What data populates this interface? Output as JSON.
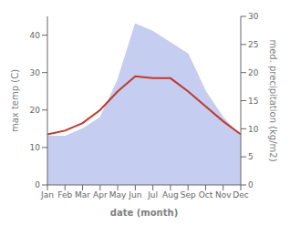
{
  "chart_data": {
    "type": "line",
    "xlabel": "date (month)",
    "ylabel": "max temp (C)",
    "y2label": "med. precipitation (kg/m2)",
    "categories": [
      "Jan",
      "Feb",
      "Mar",
      "Apr",
      "May",
      "Jun",
      "Jul",
      "Aug",
      "Sep",
      "Oct",
      "Nov",
      "Dec"
    ],
    "series": [
      {
        "type": "area",
        "color": "#c5cdf0",
        "values": [
          13.0,
          13.0,
          15.0,
          18.0,
          28.0,
          43.0,
          41.0,
          38.0,
          35.0,
          25.0,
          18.0,
          13.0
        ]
      },
      {
        "type": "line",
        "color": "#c0392b",
        "values": [
          13.5,
          14.5,
          16.5,
          20.0,
          25.0,
          29.0,
          28.5,
          28.5,
          25.0,
          21.0,
          17.0,
          13.5
        ]
      }
    ],
    "ylim": [
      0,
      45
    ],
    "yticks": [
      0,
      10,
      20,
      30,
      40
    ],
    "y2lim": [
      0,
      30
    ],
    "y2ticks": [
      0,
      5,
      10,
      15,
      20,
      25,
      30
    ]
  }
}
